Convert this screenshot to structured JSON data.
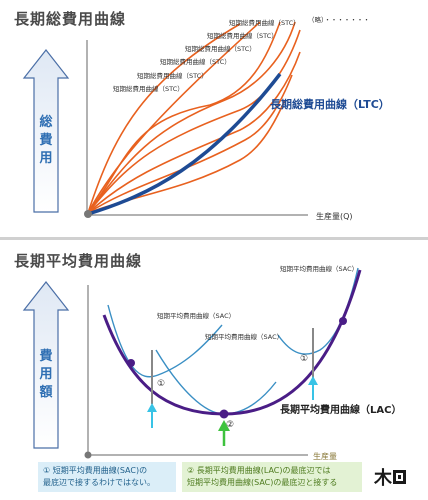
{
  "top": {
    "title": "長期総費用曲線",
    "y_axis_label": [
      "総",
      "費",
      "用"
    ],
    "x_axis_label": "生産量(Q)",
    "ltc_label": "長期総費用曲線（LTC）",
    "stc_labels": [
      "短期総費用曲線（STC）",
      "短期総費用曲線（STC）",
      "短期総費用曲線（STC）",
      "短期総費用曲線（STC）",
      "短期総費用曲線（STC）",
      "短期総費用曲線（STC）"
    ],
    "ellipsis_label": "（略）・・・・・・・",
    "colors": {
      "stc": "#e8611f",
      "ltc": "#1e4b94"
    }
  },
  "bottom": {
    "title": "長期平均費用曲線",
    "y_axis_label": [
      "費",
      "用",
      "額"
    ],
    "x_axis_label": "生産量",
    "lac_label": "長期平均費用曲線（LAC）",
    "sac_labels": [
      "短期平均費用曲線（SAC）",
      "短期平均費用曲線（SAC）",
      "短期平均費用曲線（SAC）"
    ],
    "markers": [
      "①",
      "②",
      "①"
    ],
    "colors": {
      "lac": "#4a1d86",
      "sac": "#3a8fc4",
      "axis_label": "#8a7a3a"
    }
  },
  "notes": {
    "note1": [
      "① 短期平均費用曲線(SAC)の",
      "最底辺で接するわけではない。"
    ],
    "note2": [
      "② 長期平均費用曲線(LAC)の最底辺では",
      "短期平均費用曲線(SAC)の最底辺と接する"
    ]
  },
  "logo_text": "木"
}
